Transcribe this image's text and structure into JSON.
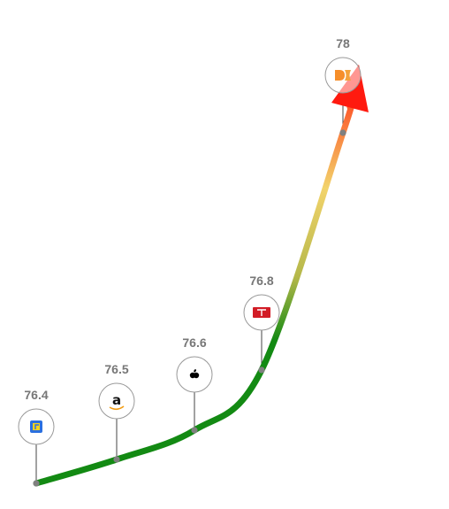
{
  "chart_data": {
    "type": "line",
    "x": [
      1,
      2,
      3,
      4,
      5
    ],
    "series": [
      {
        "values": [
          76.4,
          76.5,
          76.6,
          76.8,
          78
        ]
      }
    ],
    "labels": [
      "76.4",
      "76.5",
      "76.6",
      "76.8",
      "78"
    ],
    "icons": [
      "flipkart-logo-icon",
      "amazon-logo-icon",
      "apple-logo-icon",
      "tesla-logo-icon",
      "d3-logo-icon"
    ],
    "colors": {
      "line_start": "#138a13",
      "line_mid": "#f2d36b",
      "line_end": "#ff3a1a",
      "arrow": "#ff1a0f",
      "point": "#808080",
      "label": "#777777",
      "circle_stroke": "#999999"
    },
    "arrow_end": true
  }
}
